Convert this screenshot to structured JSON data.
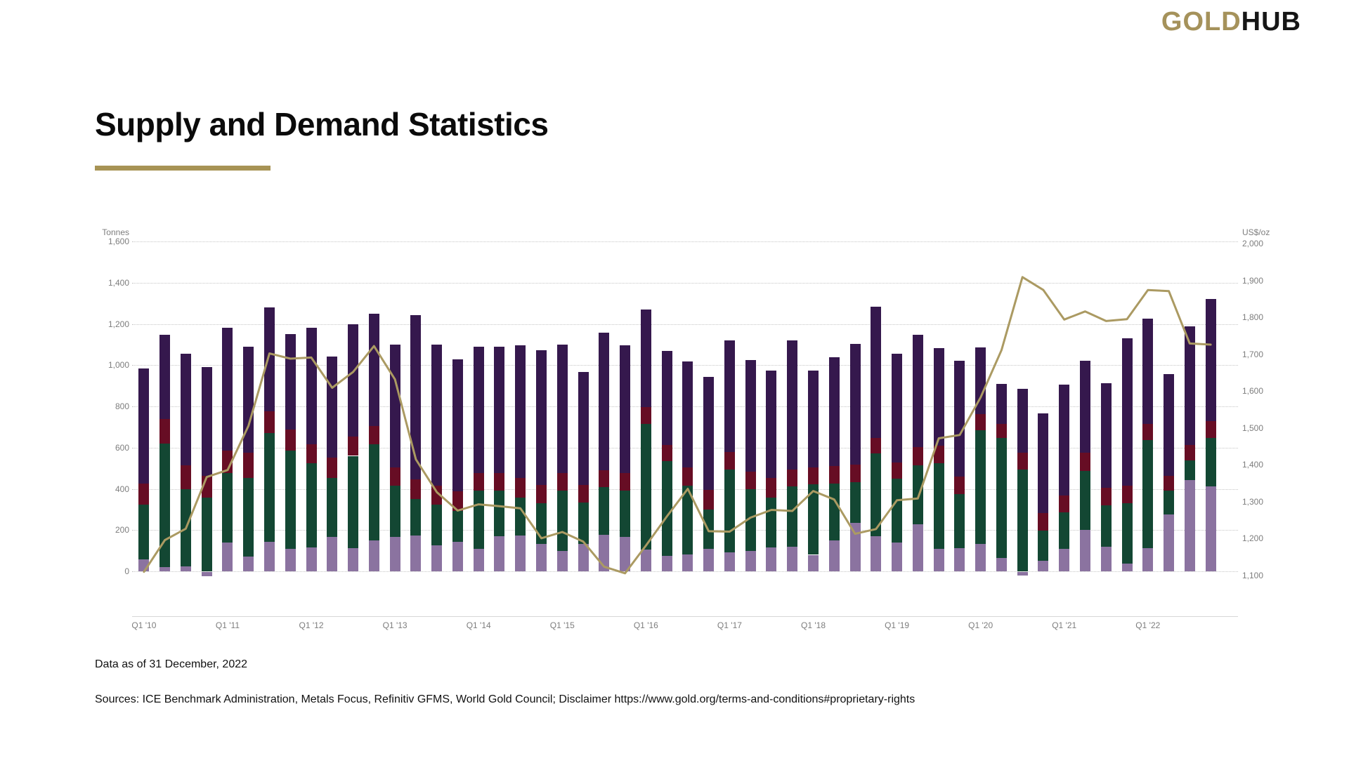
{
  "header": {
    "logo_gold": "GOLD",
    "logo_hub": "HUB"
  },
  "title": "Supply and Demand Statistics",
  "chart": {
    "left_axis": {
      "title": "Tonnes",
      "ticks": [
        "1,600",
        "1,400",
        "1,200",
        "1,000",
        "800",
        "600",
        "400",
        "200",
        "0"
      ]
    },
    "right_axis": {
      "title": "US$/oz",
      "ticks": [
        "2,000",
        "1,900",
        "1,800",
        "1,700",
        "1,600",
        "1,500",
        "1,400",
        "1,300",
        "1,200",
        "1,100"
      ]
    },
    "x_tick_labels": [
      "Q1 '10",
      "Q1 '11",
      "Q1 '12",
      "Q1 '13",
      "Q1 '14",
      "Q1 '15",
      "Q1 '16",
      "Q1 '17",
      "Q1 '18",
      "Q1 '19",
      "Q1 '20",
      "Q1 '21",
      "Q1 '22"
    ]
  },
  "chart_data": {
    "type": "bar",
    "subtype": "stacked-bars-with-line-overlay",
    "grid": "horizontal-dotted",
    "left_ylim": [
      0,
      1600
    ],
    "left_ytick_step": 200,
    "right_ylim": [
      1100,
      2000
    ],
    "right_ytick_step": 100,
    "categories": [
      "Q1 '10",
      "Q2 '10",
      "Q3 '10",
      "Q4 '10",
      "Q1 '11",
      "Q2 '11",
      "Q3 '11",
      "Q4 '11",
      "Q1 '12",
      "Q2 '12",
      "Q3 '12",
      "Q4 '12",
      "Q1 '13",
      "Q2 '13",
      "Q3 '13",
      "Q4 '13",
      "Q1 '14",
      "Q2 '14",
      "Q3 '14",
      "Q4 '14",
      "Q1 '15",
      "Q2 '15",
      "Q3 '15",
      "Q4 '15",
      "Q1 '16",
      "Q2 '16",
      "Q3 '16",
      "Q4 '16",
      "Q1 '17",
      "Q2 '17",
      "Q3 '17",
      "Q4 '17",
      "Q1 '18",
      "Q2 '18",
      "Q3 '18",
      "Q4 '18",
      "Q1 '19",
      "Q2 '19",
      "Q3 '19",
      "Q4 '19",
      "Q1 '20",
      "Q2 '20",
      "Q3 '20",
      "Q4 '20",
      "Q1 '21",
      "Q2 '21",
      "Q3 '21",
      "Q4 '21",
      "Q1 '22",
      "Q2 '22",
      "Q3 '22",
      "Q4 '22"
    ],
    "bar_series": [
      {
        "name": "lavender-bottom-segment",
        "color": "#8b73a0",
        "values": [
          58,
          20,
          25,
          -20,
          140,
          72,
          143,
          109,
          117,
          168,
          113,
          151,
          168,
          174,
          125,
          143,
          109,
          170,
          174,
          132,
          100,
          134,
          177,
          166,
          105,
          75,
          83,
          109,
          91,
          98,
          117,
          120,
          80,
          151,
          234,
          170,
          140,
          227,
          109,
          114,
          132,
          64,
          -16,
          52,
          109,
          202,
          120,
          37,
          111,
          276,
          441,
          412
        ]
      },
      {
        "name": "green-segment",
        "color": "#134733",
        "values": [
          265,
          600,
          375,
          356,
          335,
          380,
          528,
          478,
          406,
          286,
          447,
          466,
          247,
          178,
          200,
          150,
          284,
          223,
          185,
          198,
          290,
          199,
          232,
          224,
          610,
          459,
          333,
          190,
          404,
          300,
          239,
          292,
          341,
          276,
          198,
          401,
          311,
          287,
          414,
          261,
          553,
          582,
          495,
          144,
          178,
          286,
          201,
          292,
          525,
          114,
          97,
          235
        ]
      },
      {
        "name": "maroon-segment",
        "color": "#670d24",
        "values": [
          102,
          118,
          115,
          108,
          111,
          125,
          105,
          99,
          94,
          98,
          94,
          88,
          88,
          94,
          91,
          96,
          84,
          84,
          93,
          89,
          88,
          85,
          80,
          85,
          80,
          80,
          88,
          97,
          84,
          86,
          97,
          83,
          83,
          82,
          86,
          76,
          75,
          87,
          86,
          86,
          76,
          70,
          80,
          87,
          80,
          86,
          83,
          86,
          80,
          72,
          76,
          83
        ]
      },
      {
        "name": "purple-top-segment",
        "color": "#35184d",
        "values": [
          560,
          410,
          540,
          525,
          595,
          513,
          503,
          466,
          564,
          491,
          545,
          545,
          596,
          795,
          684,
          640,
          613,
          613,
          645,
          653,
          620,
          548,
          668,
          622,
          475,
          454,
          514,
          548,
          541,
          539,
          522,
          625,
          471,
          528,
          584,
          636,
          531,
          545,
          474,
          561,
          325,
          193,
          311,
          484,
          537,
          448,
          508,
          716,
          511,
          493,
          575,
          591
        ]
      }
    ],
    "line_series": {
      "name": "gold-price-line",
      "color": "#ab9a62",
      "axis": "right",
      "unit": "US$/oz",
      "values": [
        1110,
        1196,
        1227,
        1367,
        1386,
        1506,
        1702,
        1688,
        1691,
        1609,
        1652,
        1722,
        1632,
        1415,
        1326,
        1276,
        1293,
        1288,
        1282,
        1201,
        1218,
        1192,
        1124,
        1106,
        1181,
        1260,
        1335,
        1220,
        1219,
        1257,
        1278,
        1275,
        1329,
        1306,
        1213,
        1226,
        1304,
        1309,
        1472,
        1481,
        1583,
        1711,
        1909,
        1874,
        1794,
        1816,
        1790,
        1795,
        1874,
        1871,
        1729,
        1726
      ]
    }
  },
  "footer": {
    "data_as_of": "Data as of 31 December, 2022",
    "sources": "Sources: ICE Benchmark Administration, Metals Focus, Refinitiv GFMS, World Gold Council; Disclaimer https://www.gold.org/terms-and-conditions#proprietary-rights"
  },
  "colors": {
    "logo_gold": "#a5925b",
    "title_underline": "#a79355",
    "gridline": "#c6c6c6",
    "tick_text": "#7d7d7d"
  }
}
